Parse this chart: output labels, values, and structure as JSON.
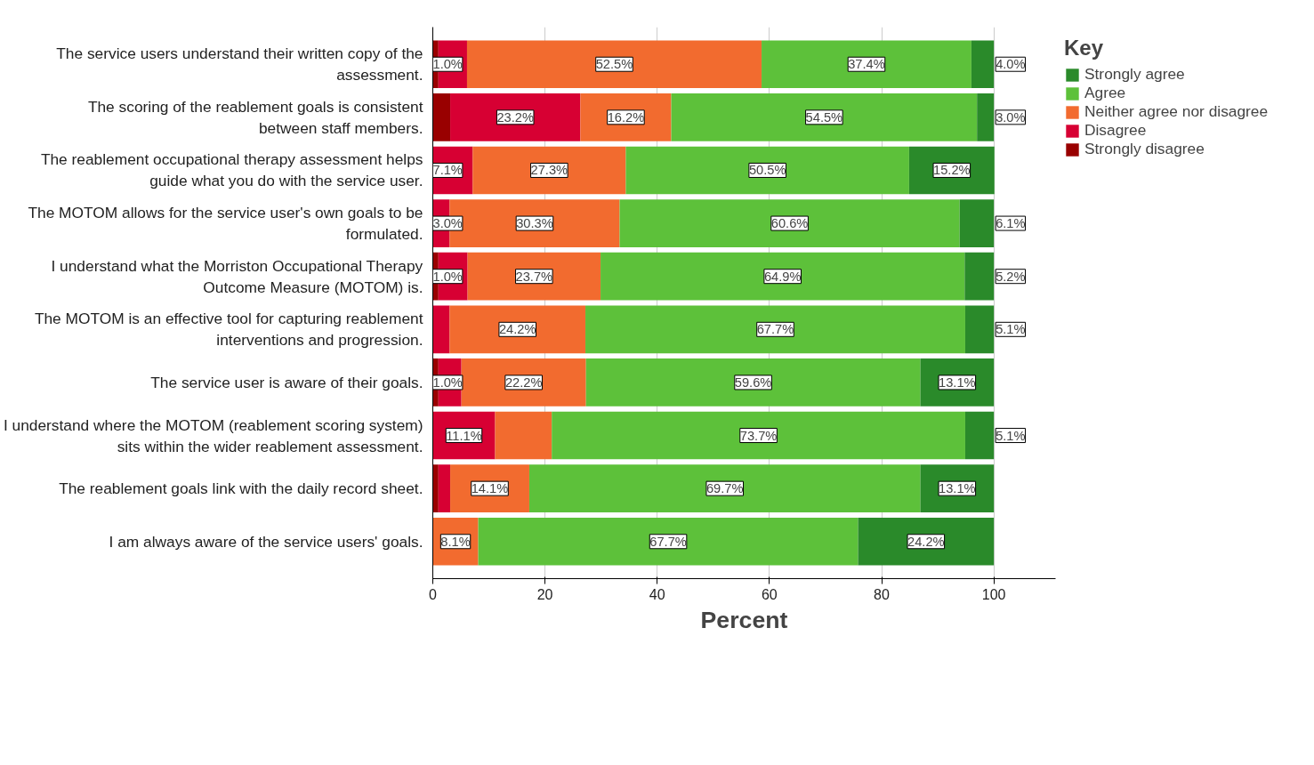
{
  "chart_data": {
    "type": "bar",
    "orientation": "horizontal",
    "stacked": true,
    "xlabel": "Percent",
    "legend_title": "Key",
    "legend": "top right",
    "grid": "x",
    "categories": [
      "The service users understand their written copy of the assessment.",
      "The scoring of the reablement goals is consistent between staff members.",
      "The reablement occupational therapy assessment helps guide what you do with the service user.",
      "The MOTOM allows for the service user's own goals to be formulated.",
      "I understand what the Morriston Occupational Therapy Outcome Measure (MOTOM) is.",
      "The MOTOM is an effective tool for capturing reablement interventions and progression.",
      "The service user is aware of their goals.",
      "I understand where the MOTOM (reablement scoring system) sits within the wider reablement assessment.",
      "The reablement goals link with the daily record sheet.",
      "I am always aware of the service users' goals."
    ],
    "xlim": [
      0,
      111
    ],
    "xticks": [
      0,
      20,
      40,
      60,
      80,
      100
    ],
    "series": [
      {
        "name": "Strongly disagree",
        "color": "#990000",
        "values": [
          1.0,
          3.1,
          0,
          0,
          1.0,
          0,
          1.0,
          0,
          1.0,
          0
        ],
        "value_labels": [
          "1.0%",
          null,
          null,
          null,
          "1.0%",
          null,
          "1.0%",
          null,
          null,
          null
        ]
      },
      {
        "name": "Disagree",
        "color": "#d70033",
        "values": [
          5.1,
          23.2,
          7.1,
          3.0,
          5.2,
          3.0,
          4.1,
          11.1,
          2.1,
          0
        ],
        "value_labels": [
          null,
          "23.2%",
          "7.1%",
          "3.0%",
          null,
          null,
          null,
          "11.1%",
          null,
          null
        ]
      },
      {
        "name": "Neither agree nor disagree",
        "color": "#f26b2f",
        "values": [
          52.5,
          16.2,
          27.3,
          30.3,
          23.7,
          24.2,
          22.2,
          10.1,
          14.1,
          8.1
        ],
        "value_labels": [
          "52.5%",
          "16.2%",
          "27.3%",
          "30.3%",
          "23.7%",
          "24.2%",
          "22.2%",
          null,
          "14.1%",
          "8.1%"
        ]
      },
      {
        "name": "Agree",
        "color": "#5dc13a",
        "values": [
          37.4,
          54.5,
          50.5,
          60.6,
          64.9,
          67.7,
          59.6,
          73.7,
          69.7,
          67.7
        ],
        "value_labels": [
          "37.4%",
          "54.5%",
          "50.5%",
          "60.6%",
          "64.9%",
          "67.7%",
          "59.6%",
          "73.7%",
          "69.7%",
          "67.7%"
        ]
      },
      {
        "name": "Strongly agree",
        "color": "#2a8a2a",
        "values": [
          4.0,
          3.0,
          15.2,
          6.1,
          5.2,
          5.1,
          13.1,
          5.1,
          13.1,
          24.2
        ],
        "value_labels": [
          "4.0%",
          "3.0%",
          "15.2%",
          "6.1%",
          "5.2%",
          "5.1%",
          "13.1%",
          "5.1%",
          "13.1%",
          "24.2%"
        ]
      }
    ]
  }
}
